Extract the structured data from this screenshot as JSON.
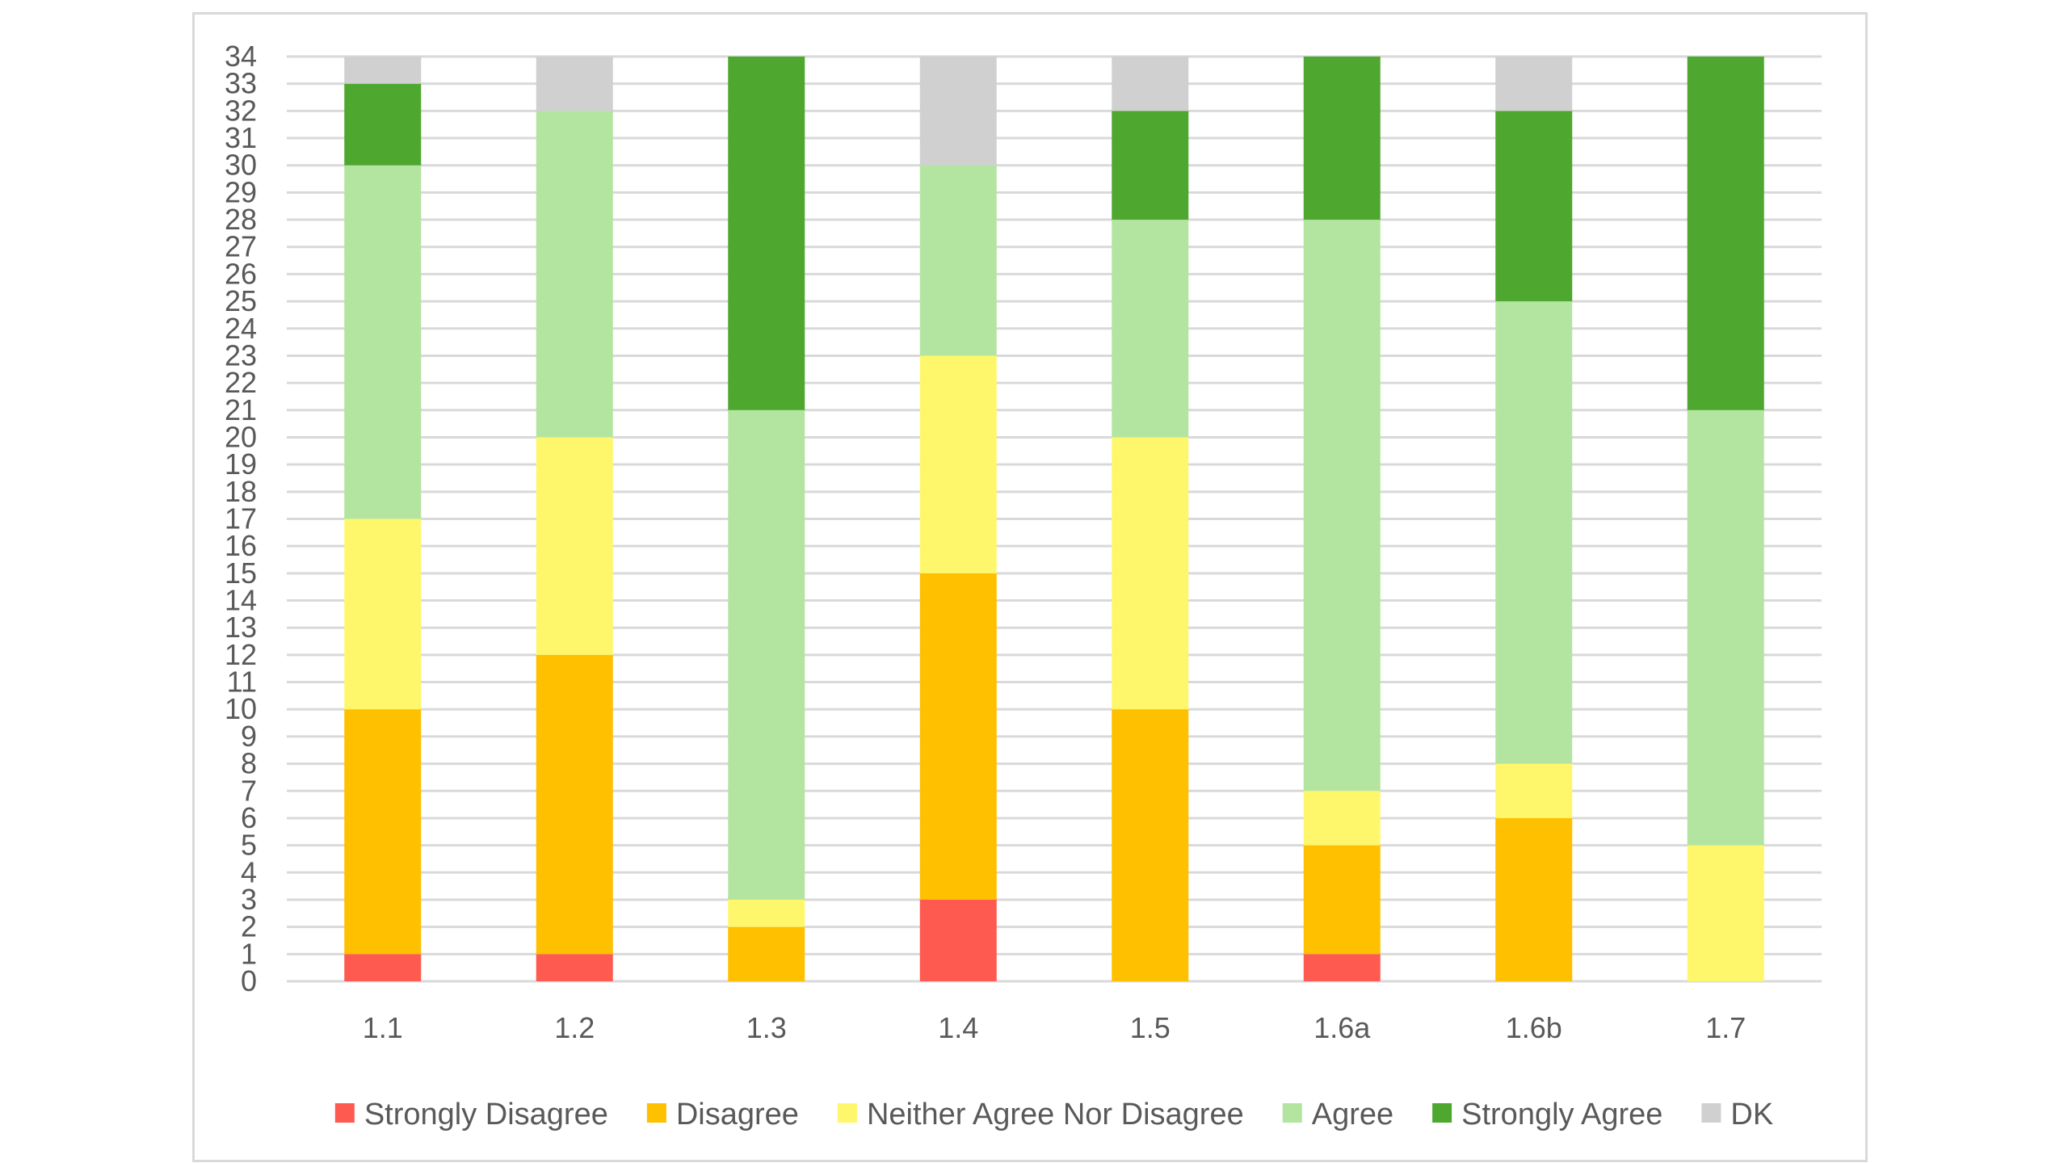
{
  "chart_data": {
    "type": "bar",
    "stacked": true,
    "title": "",
    "xlabel": "",
    "ylabel": "",
    "ylim": [
      0,
      34
    ],
    "y_tick_step": 1,
    "grid": true,
    "legend_position": "bottom",
    "categories": [
      "1.1",
      "1.2",
      "1.3",
      "1.4",
      "1.5",
      "1.6a",
      "1.6b",
      "1.7"
    ],
    "series": [
      {
        "name": "Strongly Disagree",
        "color": "#ff5a4f",
        "values": [
          1,
          1,
          0,
          3,
          0,
          1,
          0,
          0
        ]
      },
      {
        "name": "Disagree",
        "color": "#ffc000",
        "values": [
          9,
          11,
          2,
          12,
          10,
          4,
          6,
          0
        ]
      },
      {
        "name": "Neither Agree Nor Disagree",
        "color": "#fff76b",
        "values": [
          7,
          8,
          1,
          8,
          10,
          2,
          2,
          5
        ]
      },
      {
        "name": "Agree",
        "color": "#b3e5a1",
        "values": [
          13,
          12,
          18,
          7,
          8,
          21,
          17,
          16
        ]
      },
      {
        "name": "Strongly Agree",
        "color": "#4ea72e",
        "values": [
          3,
          0,
          13,
          0,
          4,
          6,
          7,
          13
        ]
      },
      {
        "name": "DK",
        "color": "#d0d0d0",
        "values": [
          1,
          2,
          0,
          4,
          2,
          0,
          2,
          0
        ]
      }
    ]
  },
  "colors": {
    "gridline": "#d9d9d9",
    "axis_text": "#595959",
    "frame_border": "#d9d9d9"
  }
}
